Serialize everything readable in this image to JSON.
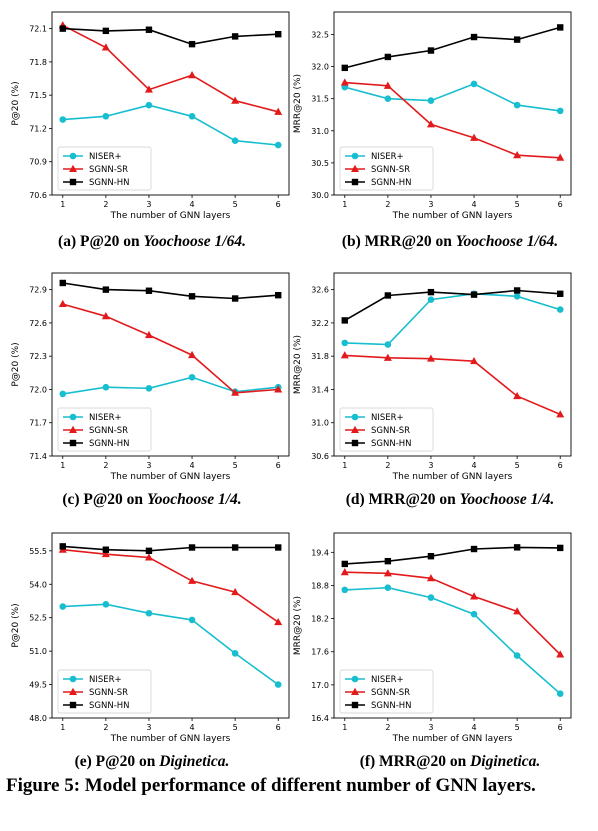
{
  "figure": {
    "caption": "Figure 5: Model performance of different number of GNN layers."
  },
  "chart_data": [
    {
      "type": "line",
      "caption_prefix": "(a) P@20 on ",
      "caption_dataset": "Yoochoose 1/64.",
      "xlabel": "The number of GNN layers",
      "ylabel": "P@20 (%)",
      "x": [
        1,
        2,
        3,
        4,
        5,
        6
      ],
      "xlim": [
        0.75,
        6.25
      ],
      "ylim": [
        70.6,
        72.25
      ],
      "yticks": [
        70.6,
        70.9,
        71.2,
        71.5,
        71.8,
        72.1
      ],
      "ytick_labels": [
        "70.6",
        "70.9",
        "71.2",
        "71.5",
        "71.8",
        "72.1"
      ],
      "legend": "lower-left",
      "series": [
        {
          "name": "NISER+",
          "color": "#17becf",
          "marker": "circle",
          "values": [
            71.28,
            71.31,
            71.41,
            71.31,
            71.09,
            71.05
          ]
        },
        {
          "name": "SGNN-SR",
          "color": "#e31a1c",
          "marker": "triangle",
          "values": [
            72.13,
            71.93,
            71.55,
            71.68,
            71.45,
            71.35
          ]
        },
        {
          "name": "SGNN-HN",
          "color": "#000000",
          "marker": "square",
          "values": [
            72.1,
            72.08,
            72.09,
            71.96,
            72.03,
            72.05
          ]
        }
      ]
    },
    {
      "type": "line",
      "caption_prefix": "(b) MRR@20 on ",
      "caption_dataset": "Yoochoose 1/64.",
      "xlabel": "The number of GNN layers",
      "ylabel": "MRR@20 (%)",
      "x": [
        1,
        2,
        3,
        4,
        5,
        6
      ],
      "xlim": [
        0.75,
        6.25
      ],
      "ylim": [
        30.0,
        32.85
      ],
      "yticks": [
        30.0,
        30.5,
        31.0,
        31.5,
        32.0,
        32.5
      ],
      "ytick_labels": [
        "30.0",
        "30.5",
        "31.0",
        "31.5",
        "32.0",
        "32.5"
      ],
      "legend": "lower-left",
      "series": [
        {
          "name": "NISER+",
          "color": "#17becf",
          "marker": "circle",
          "values": [
            31.68,
            31.5,
            31.47,
            31.73,
            31.4,
            31.31
          ]
        },
        {
          "name": "SGNN-SR",
          "color": "#e31a1c",
          "marker": "triangle",
          "values": [
            31.75,
            31.7,
            31.1,
            30.89,
            30.62,
            30.58
          ]
        },
        {
          "name": "SGNN-HN",
          "color": "#000000",
          "marker": "square",
          "values": [
            31.98,
            32.15,
            32.25,
            32.46,
            32.42,
            32.61
          ]
        }
      ]
    },
    {
      "type": "line",
      "caption_prefix": "(c) P@20 on ",
      "caption_dataset": "Yoochoose 1/4.",
      "xlabel": "The number of GNN layers",
      "ylabel": "P@20 (%)",
      "x": [
        1,
        2,
        3,
        4,
        5,
        6
      ],
      "xlim": [
        0.75,
        6.25
      ],
      "ylim": [
        71.4,
        73.05
      ],
      "yticks": [
        71.4,
        71.7,
        72.0,
        72.3,
        72.6,
        72.9
      ],
      "ytick_labels": [
        "71.4",
        "71.7",
        "72.0",
        "72.3",
        "72.6",
        "72.9"
      ],
      "legend": "lower-left",
      "series": [
        {
          "name": "NISER+",
          "color": "#17becf",
          "marker": "circle",
          "values": [
            71.96,
            72.02,
            72.01,
            72.11,
            71.98,
            72.02
          ]
        },
        {
          "name": "SGNN-SR",
          "color": "#e31a1c",
          "marker": "triangle",
          "values": [
            72.77,
            72.66,
            72.49,
            72.31,
            71.97,
            72.0
          ]
        },
        {
          "name": "SGNN-HN",
          "color": "#000000",
          "marker": "square",
          "values": [
            72.96,
            72.9,
            72.89,
            72.84,
            72.82,
            72.85
          ]
        }
      ]
    },
    {
      "type": "line",
      "caption_prefix": "(d) MRR@20 on ",
      "caption_dataset": "Yoochoose 1/4.",
      "xlabel": "The number of GNN layers",
      "ylabel": "MRR@20 (%)",
      "x": [
        1,
        2,
        3,
        4,
        5,
        6
      ],
      "xlim": [
        0.75,
        6.25
      ],
      "ylim": [
        30.6,
        32.8
      ],
      "yticks": [
        30.6,
        31.0,
        31.4,
        31.8,
        32.2,
        32.6
      ],
      "ytick_labels": [
        "30.6",
        "31.0",
        "31.4",
        "31.8",
        "32.2",
        "32.6"
      ],
      "legend": "lower-left",
      "series": [
        {
          "name": "NISER+",
          "color": "#17becf",
          "marker": "circle",
          "values": [
            31.96,
            31.94,
            32.48,
            32.55,
            32.52,
            32.36
          ]
        },
        {
          "name": "SGNN-SR",
          "color": "#e31a1c",
          "marker": "triangle",
          "values": [
            31.81,
            31.78,
            31.77,
            31.74,
            31.32,
            31.1
          ]
        },
        {
          "name": "SGNN-HN",
          "color": "#000000",
          "marker": "square",
          "values": [
            32.23,
            32.53,
            32.57,
            32.54,
            32.59,
            32.55
          ]
        }
      ]
    },
    {
      "type": "line",
      "caption_prefix": "(e) P@20 on ",
      "caption_dataset": "Diginetica.",
      "xlabel": "The number of GNN layers",
      "ylabel": "P@20 (%)",
      "x": [
        1,
        2,
        3,
        4,
        5,
        6
      ],
      "xlim": [
        0.75,
        6.25
      ],
      "ylim": [
        48.0,
        56.3
      ],
      "yticks": [
        48.0,
        49.5,
        51.0,
        52.5,
        54.0,
        55.5
      ],
      "ytick_labels": [
        "48.0",
        "49.5",
        "51.0",
        "52.5",
        "54.0",
        "55.5"
      ],
      "legend": "lower-left",
      "series": [
        {
          "name": "NISER+",
          "color": "#17becf",
          "marker": "circle",
          "values": [
            53.0,
            53.1,
            52.7,
            52.4,
            50.9,
            49.5
          ]
        },
        {
          "name": "SGNN-SR",
          "color": "#e31a1c",
          "marker": "triangle",
          "values": [
            55.55,
            55.35,
            55.2,
            54.15,
            53.65,
            52.3
          ]
        },
        {
          "name": "SGNN-HN",
          "color": "#000000",
          "marker": "square",
          "values": [
            55.7,
            55.55,
            55.5,
            55.65,
            55.65,
            55.65
          ]
        }
      ]
    },
    {
      "type": "line",
      "caption_prefix": "(f) MRR@20 on ",
      "caption_dataset": "Diginetica.",
      "xlabel": "The number of GNN layers",
      "ylabel": "MRR@20 (%)",
      "x": [
        1,
        2,
        3,
        4,
        5,
        6
      ],
      "xlim": [
        0.75,
        6.25
      ],
      "ylim": [
        16.4,
        19.75
      ],
      "yticks": [
        16.4,
        17.0,
        17.6,
        18.2,
        18.8,
        19.4
      ],
      "ytick_labels": [
        "16.4",
        "17.0",
        "17.6",
        "18.2",
        "18.8",
        "19.4"
      ],
      "legend": "lower-left",
      "series": [
        {
          "name": "NISER+",
          "color": "#17becf",
          "marker": "circle",
          "values": [
            18.72,
            18.76,
            18.58,
            18.28,
            17.53,
            16.84
          ]
        },
        {
          "name": "SGNN-SR",
          "color": "#e31a1c",
          "marker": "triangle",
          "values": [
            19.04,
            19.02,
            18.93,
            18.6,
            18.33,
            17.55
          ]
        },
        {
          "name": "SGNN-HN",
          "color": "#000000",
          "marker": "square",
          "values": [
            19.19,
            19.24,
            19.33,
            19.46,
            19.49,
            19.48
          ]
        }
      ]
    }
  ]
}
